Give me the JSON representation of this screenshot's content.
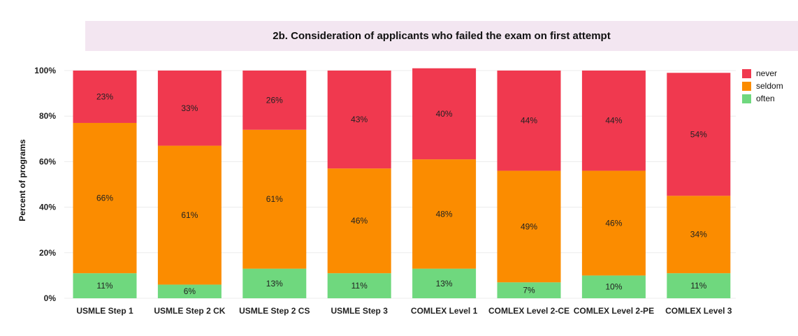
{
  "colors": {
    "never": "#f0394f",
    "seldom": "#fb8c00",
    "often": "#6fd87e",
    "title_band": "#f3e6f1"
  },
  "chart_data": {
    "type": "bar",
    "stacked": true,
    "title": "2b. Consideration of applicants who failed the exam on first attempt",
    "ylabel": "Percent of programs",
    "xlabel": "",
    "ylim": [
      0,
      100
    ],
    "yticks": [
      "0%",
      "20%",
      "40%",
      "60%",
      "80%",
      "100%"
    ],
    "grid": true,
    "legend_position": "right",
    "categories": [
      "USMLE Step 1",
      "USMLE Step 2 CK",
      "USMLE Step 2 CS",
      "USMLE Step 3",
      "COMLEX Level 1",
      "COMLEX Level 2-CE",
      "COMLEX Level 2-PE",
      "COMLEX Level 3"
    ],
    "series": [
      {
        "name": "often",
        "values": [
          11,
          6,
          13,
          11,
          13,
          7,
          10,
          11
        ],
        "labels": [
          "11%",
          "6%",
          "13%",
          "11%",
          "13%",
          "7%",
          "10%",
          "11%"
        ]
      },
      {
        "name": "seldom",
        "values": [
          66,
          61,
          61,
          46,
          48,
          49,
          46,
          34
        ],
        "labels": [
          "66%",
          "61%",
          "61%",
          "46%",
          "48%",
          "49%",
          "46%",
          "34%"
        ]
      },
      {
        "name": "never",
        "values": [
          23,
          33,
          26,
          43,
          40,
          44,
          44,
          54
        ],
        "labels": [
          "23%",
          "33%",
          "26%",
          "43%",
          "40%",
          "44%",
          "44%",
          "54%"
        ]
      }
    ],
    "legend": [
      "never",
      "seldom",
      "often"
    ]
  }
}
